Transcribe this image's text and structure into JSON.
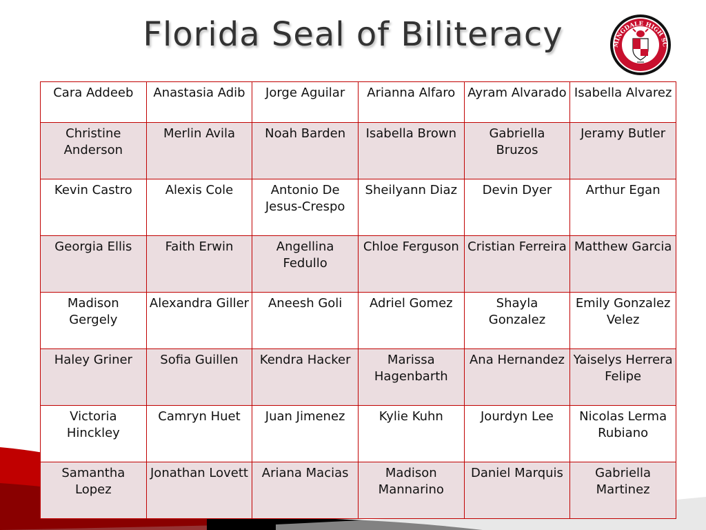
{
  "title": "Florida Seal of Biliteracy",
  "seal": {
    "text": "BLOOMINGDALE HIGH SCHOOL",
    "colors": {
      "ring": "#111111",
      "accent": "#c8102e",
      "inner": "#ffffff"
    }
  },
  "colors": {
    "border": "#c00000",
    "alt_row": "#ebdde0",
    "title": "#333333"
  },
  "rows": [
    [
      "Cara Addeeb",
      "Anastasia Adib",
      "Jorge Aguilar",
      "Arianna Alfaro",
      "Ayram Alvarado",
      "Isabella Alvarez"
    ],
    [
      "Christine Anderson",
      "Merlin Avila",
      "Noah Barden",
      "Isabella Brown",
      "Gabriella Bruzos",
      "Jeramy Butler"
    ],
    [
      "Kevin Castro",
      "Alexis Cole",
      "Antonio De Jesus-Crespo",
      "Sheilyann Diaz",
      "Devin Dyer",
      "Arthur Egan"
    ],
    [
      "Georgia Ellis",
      "Faith Erwin",
      "Angellina Fedullo",
      "Chloe Ferguson",
      "Cristian Ferreira",
      "Matthew Garcia"
    ],
    [
      "Madison Gergely",
      "Alexandra Giller",
      "Aneesh Goli",
      "Adriel Gomez",
      "Shayla Gonzalez",
      "Emily Gonzalez Velez"
    ],
    [
      "Haley Griner",
      "Sofia Guillen",
      "Kendra Hacker",
      "Marissa Hagenbarth",
      "Ana Hernandez",
      "Yaiselys Herrera Felipe"
    ],
    [
      "Victoria Hinckley",
      "Camryn Huet",
      "Juan Jimenez",
      "Kylie Kuhn",
      "Jourdyn Lee",
      "Nicolas Lerma Rubiano"
    ],
    [
      "Samantha Lopez",
      "Jonathan Lovett",
      "Ariana Macias",
      "Madison Mannarino",
      "Daniel Marquis",
      "Gabriella Martinez"
    ]
  ]
}
